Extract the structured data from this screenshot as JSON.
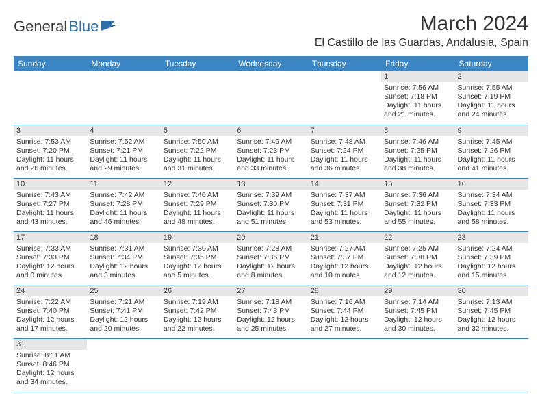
{
  "logo": {
    "first": "General",
    "second": "Blue"
  },
  "title": "March 2024",
  "location": "El Castillo de las Guardas, Andalusia, Spain",
  "colors": {
    "header_bg": "#3b86c4",
    "header_text": "#ffffff",
    "daynum_bg": "#e6e6e6",
    "cell_border": "#3b86c4",
    "body_text": "#333333",
    "logo_accent": "#2f6fab"
  },
  "weekdays": [
    "Sunday",
    "Monday",
    "Tuesday",
    "Wednesday",
    "Thursday",
    "Friday",
    "Saturday"
  ],
  "weeks": [
    [
      {
        "day": "",
        "sunrise": "",
        "sunset": "",
        "daylight1": "",
        "daylight2": ""
      },
      {
        "day": "",
        "sunrise": "",
        "sunset": "",
        "daylight1": "",
        "daylight2": ""
      },
      {
        "day": "",
        "sunrise": "",
        "sunset": "",
        "daylight1": "",
        "daylight2": ""
      },
      {
        "day": "",
        "sunrise": "",
        "sunset": "",
        "daylight1": "",
        "daylight2": ""
      },
      {
        "day": "",
        "sunrise": "",
        "sunset": "",
        "daylight1": "",
        "daylight2": ""
      },
      {
        "day": "1",
        "sunrise": "Sunrise: 7:56 AM",
        "sunset": "Sunset: 7:18 PM",
        "daylight1": "Daylight: 11 hours",
        "daylight2": "and 21 minutes."
      },
      {
        "day": "2",
        "sunrise": "Sunrise: 7:55 AM",
        "sunset": "Sunset: 7:19 PM",
        "daylight1": "Daylight: 11 hours",
        "daylight2": "and 24 minutes."
      }
    ],
    [
      {
        "day": "3",
        "sunrise": "Sunrise: 7:53 AM",
        "sunset": "Sunset: 7:20 PM",
        "daylight1": "Daylight: 11 hours",
        "daylight2": "and 26 minutes."
      },
      {
        "day": "4",
        "sunrise": "Sunrise: 7:52 AM",
        "sunset": "Sunset: 7:21 PM",
        "daylight1": "Daylight: 11 hours",
        "daylight2": "and 29 minutes."
      },
      {
        "day": "5",
        "sunrise": "Sunrise: 7:50 AM",
        "sunset": "Sunset: 7:22 PM",
        "daylight1": "Daylight: 11 hours",
        "daylight2": "and 31 minutes."
      },
      {
        "day": "6",
        "sunrise": "Sunrise: 7:49 AM",
        "sunset": "Sunset: 7:23 PM",
        "daylight1": "Daylight: 11 hours",
        "daylight2": "and 33 minutes."
      },
      {
        "day": "7",
        "sunrise": "Sunrise: 7:48 AM",
        "sunset": "Sunset: 7:24 PM",
        "daylight1": "Daylight: 11 hours",
        "daylight2": "and 36 minutes."
      },
      {
        "day": "8",
        "sunrise": "Sunrise: 7:46 AM",
        "sunset": "Sunset: 7:25 PM",
        "daylight1": "Daylight: 11 hours",
        "daylight2": "and 38 minutes."
      },
      {
        "day": "9",
        "sunrise": "Sunrise: 7:45 AM",
        "sunset": "Sunset: 7:26 PM",
        "daylight1": "Daylight: 11 hours",
        "daylight2": "and 41 minutes."
      }
    ],
    [
      {
        "day": "10",
        "sunrise": "Sunrise: 7:43 AM",
        "sunset": "Sunset: 7:27 PM",
        "daylight1": "Daylight: 11 hours",
        "daylight2": "and 43 minutes."
      },
      {
        "day": "11",
        "sunrise": "Sunrise: 7:42 AM",
        "sunset": "Sunset: 7:28 PM",
        "daylight1": "Daylight: 11 hours",
        "daylight2": "and 46 minutes."
      },
      {
        "day": "12",
        "sunrise": "Sunrise: 7:40 AM",
        "sunset": "Sunset: 7:29 PM",
        "daylight1": "Daylight: 11 hours",
        "daylight2": "and 48 minutes."
      },
      {
        "day": "13",
        "sunrise": "Sunrise: 7:39 AM",
        "sunset": "Sunset: 7:30 PM",
        "daylight1": "Daylight: 11 hours",
        "daylight2": "and 51 minutes."
      },
      {
        "day": "14",
        "sunrise": "Sunrise: 7:37 AM",
        "sunset": "Sunset: 7:31 PM",
        "daylight1": "Daylight: 11 hours",
        "daylight2": "and 53 minutes."
      },
      {
        "day": "15",
        "sunrise": "Sunrise: 7:36 AM",
        "sunset": "Sunset: 7:32 PM",
        "daylight1": "Daylight: 11 hours",
        "daylight2": "and 55 minutes."
      },
      {
        "day": "16",
        "sunrise": "Sunrise: 7:34 AM",
        "sunset": "Sunset: 7:33 PM",
        "daylight1": "Daylight: 11 hours",
        "daylight2": "and 58 minutes."
      }
    ],
    [
      {
        "day": "17",
        "sunrise": "Sunrise: 7:33 AM",
        "sunset": "Sunset: 7:33 PM",
        "daylight1": "Daylight: 12 hours",
        "daylight2": "and 0 minutes."
      },
      {
        "day": "18",
        "sunrise": "Sunrise: 7:31 AM",
        "sunset": "Sunset: 7:34 PM",
        "daylight1": "Daylight: 12 hours",
        "daylight2": "and 3 minutes."
      },
      {
        "day": "19",
        "sunrise": "Sunrise: 7:30 AM",
        "sunset": "Sunset: 7:35 PM",
        "daylight1": "Daylight: 12 hours",
        "daylight2": "and 5 minutes."
      },
      {
        "day": "20",
        "sunrise": "Sunrise: 7:28 AM",
        "sunset": "Sunset: 7:36 PM",
        "daylight1": "Daylight: 12 hours",
        "daylight2": "and 8 minutes."
      },
      {
        "day": "21",
        "sunrise": "Sunrise: 7:27 AM",
        "sunset": "Sunset: 7:37 PM",
        "daylight1": "Daylight: 12 hours",
        "daylight2": "and 10 minutes."
      },
      {
        "day": "22",
        "sunrise": "Sunrise: 7:25 AM",
        "sunset": "Sunset: 7:38 PM",
        "daylight1": "Daylight: 12 hours",
        "daylight2": "and 12 minutes."
      },
      {
        "day": "23",
        "sunrise": "Sunrise: 7:24 AM",
        "sunset": "Sunset: 7:39 PM",
        "daylight1": "Daylight: 12 hours",
        "daylight2": "and 15 minutes."
      }
    ],
    [
      {
        "day": "24",
        "sunrise": "Sunrise: 7:22 AM",
        "sunset": "Sunset: 7:40 PM",
        "daylight1": "Daylight: 12 hours",
        "daylight2": "and 17 minutes."
      },
      {
        "day": "25",
        "sunrise": "Sunrise: 7:21 AM",
        "sunset": "Sunset: 7:41 PM",
        "daylight1": "Daylight: 12 hours",
        "daylight2": "and 20 minutes."
      },
      {
        "day": "26",
        "sunrise": "Sunrise: 7:19 AM",
        "sunset": "Sunset: 7:42 PM",
        "daylight1": "Daylight: 12 hours",
        "daylight2": "and 22 minutes."
      },
      {
        "day": "27",
        "sunrise": "Sunrise: 7:18 AM",
        "sunset": "Sunset: 7:43 PM",
        "daylight1": "Daylight: 12 hours",
        "daylight2": "and 25 minutes."
      },
      {
        "day": "28",
        "sunrise": "Sunrise: 7:16 AM",
        "sunset": "Sunset: 7:44 PM",
        "daylight1": "Daylight: 12 hours",
        "daylight2": "and 27 minutes."
      },
      {
        "day": "29",
        "sunrise": "Sunrise: 7:14 AM",
        "sunset": "Sunset: 7:45 PM",
        "daylight1": "Daylight: 12 hours",
        "daylight2": "and 30 minutes."
      },
      {
        "day": "30",
        "sunrise": "Sunrise: 7:13 AM",
        "sunset": "Sunset: 7:45 PM",
        "daylight1": "Daylight: 12 hours",
        "daylight2": "and 32 minutes."
      }
    ],
    [
      {
        "day": "31",
        "sunrise": "Sunrise: 8:11 AM",
        "sunset": "Sunset: 8:46 PM",
        "daylight1": "Daylight: 12 hours",
        "daylight2": "and 34 minutes."
      },
      {
        "day": "",
        "sunrise": "",
        "sunset": "",
        "daylight1": "",
        "daylight2": ""
      },
      {
        "day": "",
        "sunrise": "",
        "sunset": "",
        "daylight1": "",
        "daylight2": ""
      },
      {
        "day": "",
        "sunrise": "",
        "sunset": "",
        "daylight1": "",
        "daylight2": ""
      },
      {
        "day": "",
        "sunrise": "",
        "sunset": "",
        "daylight1": "",
        "daylight2": ""
      },
      {
        "day": "",
        "sunrise": "",
        "sunset": "",
        "daylight1": "",
        "daylight2": ""
      },
      {
        "day": "",
        "sunrise": "",
        "sunset": "",
        "daylight1": "",
        "daylight2": ""
      }
    ]
  ]
}
